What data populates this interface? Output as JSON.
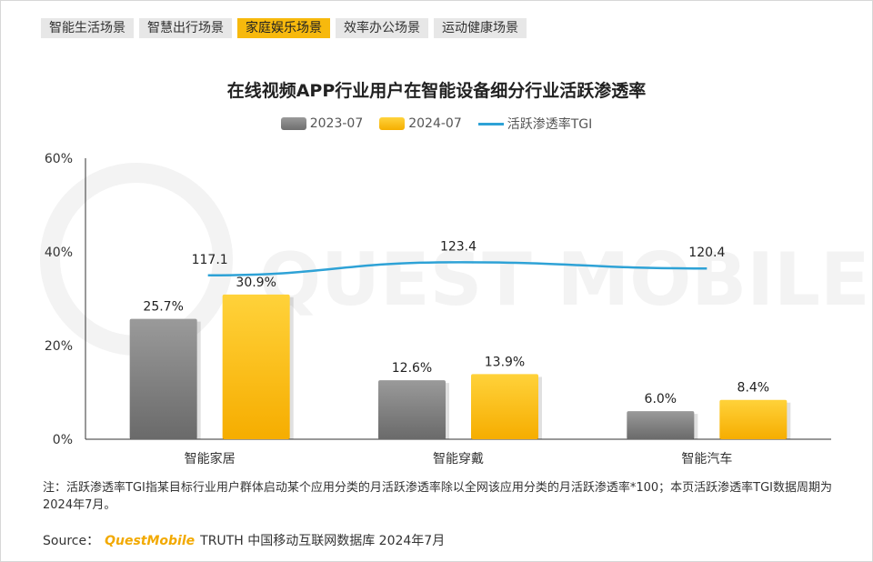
{
  "tabs": [
    {
      "label": "智能生活场景",
      "active": false
    },
    {
      "label": "智慧出行场景",
      "active": false
    },
    {
      "label": "家庭娱乐场景",
      "active": true
    },
    {
      "label": "效率办公场景",
      "active": false
    },
    {
      "label": "运动健康场景",
      "active": false
    }
  ],
  "watermark": "QUEST MOBILE",
  "chart_data": {
    "type": "bar",
    "title": "在线视频APP行业用户在智能设备细分行业活跃渗透率",
    "categories": [
      "智能家居",
      "智能穿戴",
      "智能汽车"
    ],
    "series": [
      {
        "name": "2023-07",
        "type": "bar",
        "color": "#7f7f7f",
        "values": [
          25.7,
          12.6,
          6.0
        ],
        "labels": [
          "25.7%",
          "12.6%",
          "6.0%"
        ]
      },
      {
        "name": "2024-07",
        "type": "bar",
        "color": "#ffc000",
        "values": [
          30.9,
          13.9,
          8.4
        ],
        "labels": [
          "30.9%",
          "13.9%",
          "8.4%"
        ]
      },
      {
        "name": "活跃渗透率TGI",
        "type": "line",
        "color": "#2ea2d6",
        "values": [
          117.1,
          123.4,
          120.4
        ],
        "labels": [
          "117.1",
          "123.4",
          "120.4"
        ]
      }
    ],
    "yaxis": {
      "min": 0,
      "max": 60,
      "ticks": [
        "0%",
        "20%",
        "40%",
        "60%"
      ]
    },
    "legend_position": "top-center",
    "grid": false
  },
  "note": "注：活跃渗透率TGI指某目标行业用户群体启动某个应用分类的月活跃渗透率除以全网该应用分类的月活跃渗透率*100；本页活跃渗透率TGI数据周期为2024年7月。",
  "source": {
    "prefix": "Source：",
    "brand": "QuestMobile",
    "rest": "TRUTH 中国移动互联网数据库 2024年7月"
  }
}
